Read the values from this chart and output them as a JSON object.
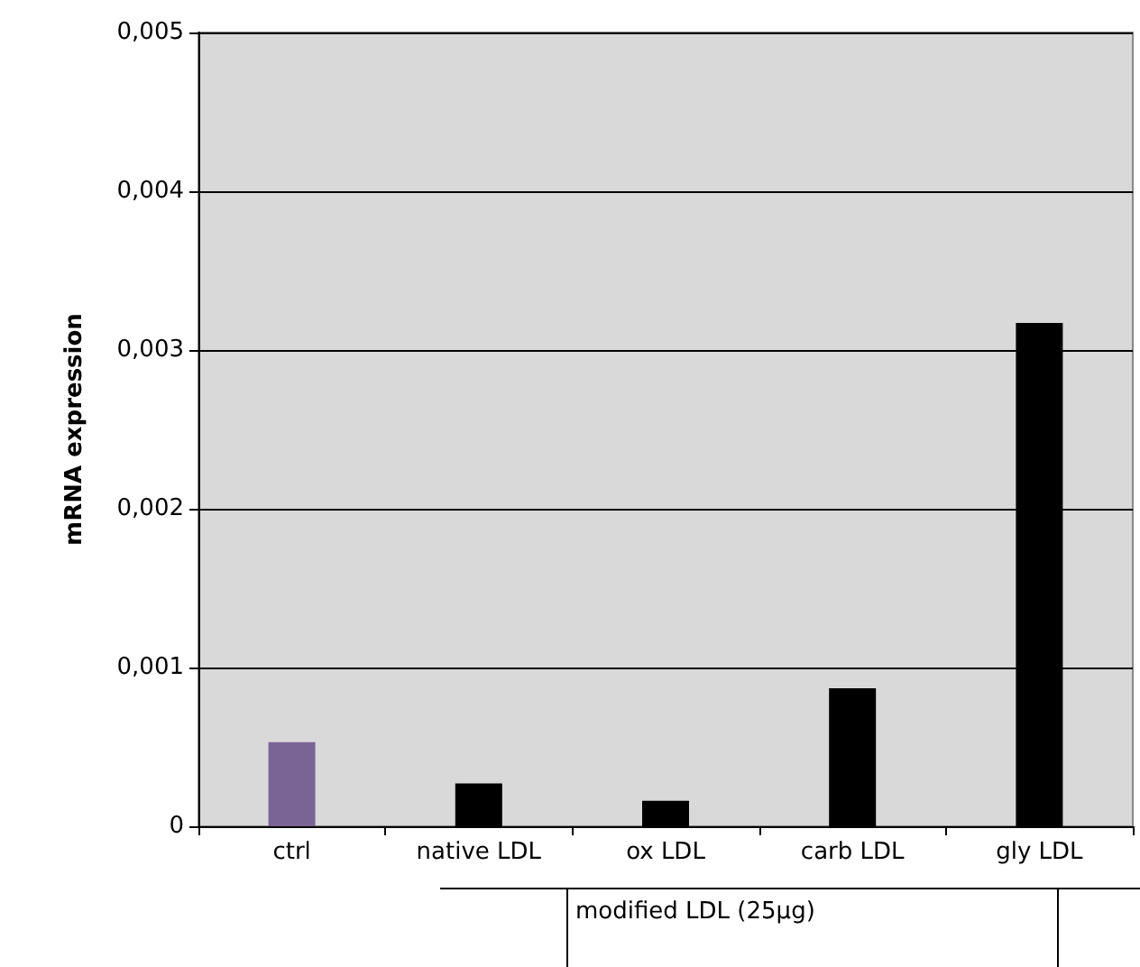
{
  "chart_data": {
    "type": "bar",
    "ylabel": "mRNA expression",
    "categories": [
      "ctrl",
      "native LDL",
      "ox LDL",
      "carb LDL",
      "gly LDL"
    ],
    "values": [
      0.00053,
      0.00027,
      0.00016,
      0.00087,
      0.00317
    ],
    "colors": [
      "#7a6496",
      "#000000",
      "#000000",
      "#000000",
      "#000000"
    ],
    "ylim": [
      0,
      0.005
    ],
    "yticks": [
      0,
      {
        "value": 0.001,
        "label": "0,001"
      },
      {
        "value": 0.002,
        "label": "0,002"
      },
      {
        "value": 0.003,
        "label": "0,003"
      },
      {
        "value": 0.004,
        "label": "0,004"
      },
      {
        "value": 0.005,
        "label": "0,005"
      }
    ],
    "grid": "y",
    "annotations": [
      "modified LDL (25µg)"
    ]
  }
}
